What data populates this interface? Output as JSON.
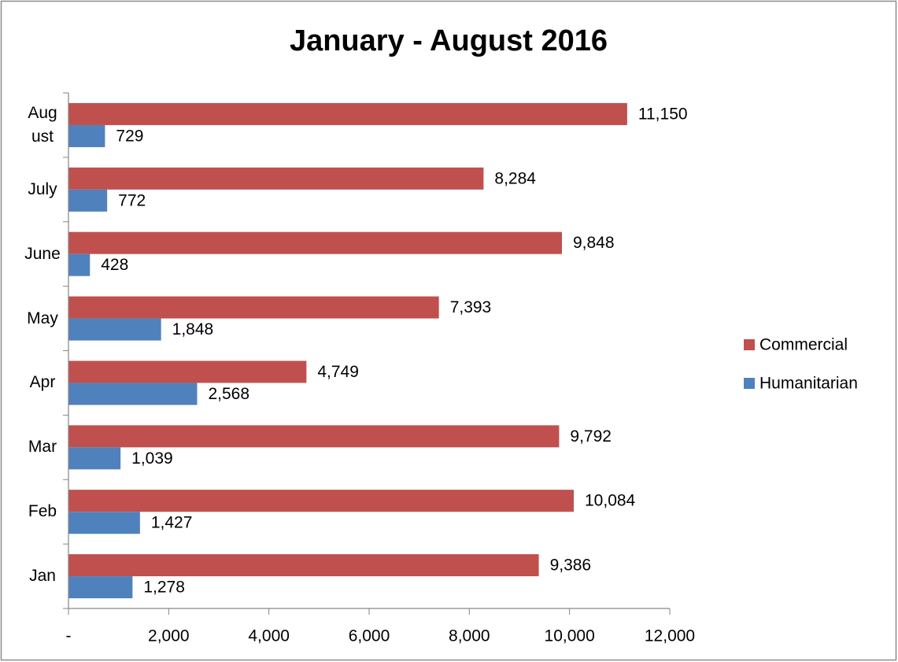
{
  "chart_data": {
    "type": "bar",
    "orientation": "horizontal",
    "title": "January - August 2016",
    "categories": [
      "Jan",
      "Feb",
      "Mar",
      "Apr",
      "May",
      "June",
      "July",
      "August"
    ],
    "series": [
      {
        "name": "Commercial",
        "color": "#c0504d",
        "values": [
          9386,
          10084,
          9792,
          4749,
          7393,
          9848,
          8284,
          11150
        ],
        "value_labels": [
          "9,386",
          "10,084",
          "9,792",
          "4,749",
          "7,393",
          "9,848",
          "8,284",
          "11,150"
        ]
      },
      {
        "name": "Humanitarian",
        "color": "#4f81bd",
        "values": [
          1278,
          1427,
          1039,
          2568,
          1848,
          428,
          772,
          729
        ],
        "value_labels": [
          "1,278",
          "1,427",
          "1,039",
          "2,568",
          "1,848",
          "428",
          "772",
          "729"
        ]
      }
    ],
    "xlim": [
      0,
      12000
    ],
    "xticks": [
      {
        "value": 0,
        "label": "-"
      },
      {
        "value": 2000,
        "label": "2,000"
      },
      {
        "value": 4000,
        "label": "4,000"
      },
      {
        "value": 6000,
        "label": "6,000"
      },
      {
        "value": 8000,
        "label": "8,000"
      },
      {
        "value": 10000,
        "label": "10,000"
      },
      {
        "value": 12000,
        "label": "12,000"
      }
    ],
    "grid": false,
    "legend": "right"
  }
}
